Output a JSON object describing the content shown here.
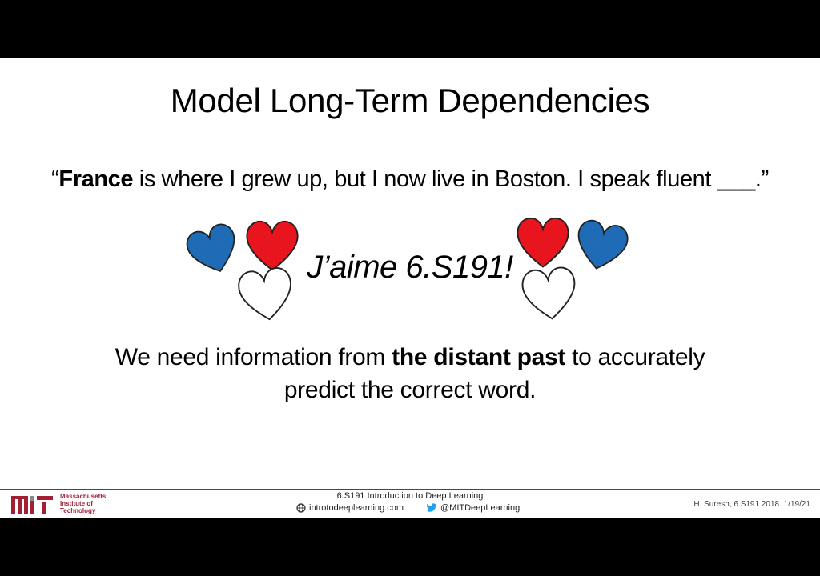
{
  "slide": {
    "title": "Model Long-Term Dependencies",
    "quote_open": "“",
    "quote_bold": "France",
    "quote_rest": " is where I grew up, but I now live in Boston. I speak fluent ___.”",
    "jaime": "J’aime 6.S191!",
    "body_line1_pre": "We need information from ",
    "body_line1_bold": "the distant past",
    "body_line1_post": " to accurately",
    "body_line2": "predict the correct word."
  },
  "hearts": {
    "blue": "#1f6bb5",
    "red": "#e8141e",
    "white": "#ffffff",
    "outline": "#222222"
  },
  "footer": {
    "institution": [
      "Massachusetts",
      "Institute of",
      "Technology"
    ],
    "course": "6.S191 Introduction to Deep Learning",
    "website": "introtodeeplearning.com",
    "twitter": "@MITDeepLearning",
    "credit": "H. Suresh, 6.S191 2018.  1/19/21",
    "accent": "#a31f34",
    "twitter_color": "#1da1f2"
  }
}
